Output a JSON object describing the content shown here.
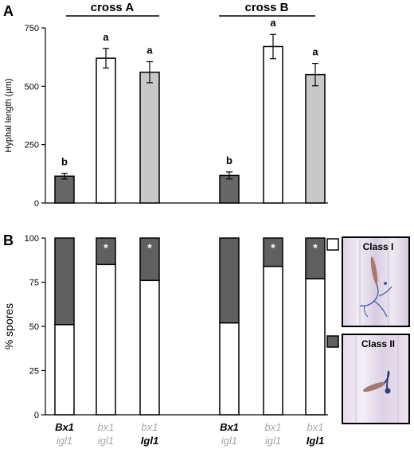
{
  "chart_data": [
    {
      "panel": "A",
      "type": "bar",
      "ylabel": "Hyphal length (µm)",
      "ylim": [
        0,
        750
      ],
      "yticks": [
        0,
        250,
        500,
        750
      ],
      "groups": [
        "cross A",
        "cross B"
      ],
      "bars": [
        {
          "group": "cross A",
          "genotype": [
            "Bx1",
            "igl1"
          ],
          "value": 115,
          "error": 12,
          "letter": "b",
          "fill": "#666666"
        },
        {
          "group": "cross A",
          "genotype": [
            "bx1",
            "igl1"
          ],
          "value": 620,
          "error": 42,
          "letter": "a",
          "fill": "#ffffff"
        },
        {
          "group": "cross A",
          "genotype": [
            "bx1",
            "Igl1"
          ],
          "value": 560,
          "error": 45,
          "letter": "a",
          "fill": "#c8c8c8"
        },
        {
          "group": "cross B",
          "genotype": [
            "Bx1",
            "igl1"
          ],
          "value": 118,
          "error": 15,
          "letter": "b",
          "fill": "#666666"
        },
        {
          "group": "cross B",
          "genotype": [
            "bx1",
            "igl1"
          ],
          "value": 670,
          "error": 52,
          "letter": "a",
          "fill": "#ffffff"
        },
        {
          "group": "cross B",
          "genotype": [
            "bx1",
            "Igl1"
          ],
          "value": 550,
          "error": 48,
          "letter": "a",
          "fill": "#c8c8c8"
        }
      ]
    },
    {
      "panel": "B",
      "type": "bar",
      "stacked": true,
      "ylabel": "% spores",
      "ylim": [
        0,
        100
      ],
      "yticks": [
        0,
        25,
        50,
        75,
        100
      ],
      "series": [
        {
          "name": "Class I",
          "fill": "#ffffff",
          "values": [
            51,
            85,
            76,
            52,
            84,
            77
          ]
        },
        {
          "name": "Class II",
          "fill": "#606060",
          "values": [
            49,
            15,
            24,
            48,
            16,
            23
          ]
        }
      ],
      "significance": [
        "",
        "*",
        "*",
        "",
        "*",
        "*"
      ],
      "categories": [
        {
          "top": "Bx1",
          "bottom": "igl1",
          "top_style": "black",
          "bottom_style": "grey"
        },
        {
          "top": "bx1",
          "bottom": "igl1",
          "top_style": "grey",
          "bottom_style": "grey"
        },
        {
          "top": "bx1",
          "bottom": "Igl1",
          "top_style": "grey",
          "bottom_style": "black"
        },
        {
          "top": "Bx1",
          "bottom": "igl1",
          "top_style": "black",
          "bottom_style": "grey"
        },
        {
          "top": "bx1",
          "bottom": "igl1",
          "top_style": "grey",
          "bottom_style": "grey"
        },
        {
          "top": "bx1",
          "bottom": "Igl1",
          "top_style": "grey",
          "bottom_style": "black"
        }
      ]
    }
  ],
  "figure": {
    "panel_labels": [
      "A",
      "B"
    ],
    "legend": [
      {
        "label": "Class I",
        "fill": "#ffffff",
        "photo": "blue branched hypha on leaf tissue"
      },
      {
        "label": "Class II",
        "fill": "#606060",
        "photo": "short hypha with appressorium on leaf tissue"
      }
    ]
  }
}
